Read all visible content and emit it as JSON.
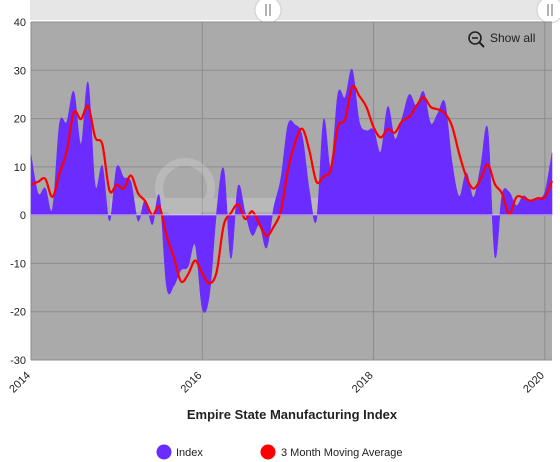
{
  "toolbar": {
    "show_all_label": "Show all"
  },
  "chart_data": {
    "type": "area",
    "title": "",
    "xlabel": "Empire State Manufacturing Index",
    "ylabel": "",
    "x_start": "2014-01",
    "x_end": "2020-02",
    "x_tick_labels": [
      "2014",
      "2016",
      "2018",
      "2020"
    ],
    "ylim": [
      -30,
      40
    ],
    "y_ticks": [
      -30,
      -20,
      -10,
      0,
      10,
      20,
      30,
      40
    ],
    "grid": true,
    "legend_position": "bottom",
    "colors": {
      "index": "#6a2cff",
      "moving_average": "#ff0000",
      "plot_background": "#aaaaaa",
      "grid": "#8c8c8c"
    },
    "x": [
      "2014-01",
      "2014-02",
      "2014-03",
      "2014-04",
      "2014-05",
      "2014-06",
      "2014-07",
      "2014-08",
      "2014-09",
      "2014-10",
      "2014-11",
      "2014-12",
      "2015-01",
      "2015-02",
      "2015-03",
      "2015-04",
      "2015-05",
      "2015-06",
      "2015-07",
      "2015-08",
      "2015-09",
      "2015-10",
      "2015-11",
      "2015-12",
      "2016-01",
      "2016-02",
      "2016-03",
      "2016-04",
      "2016-05",
      "2016-06",
      "2016-07",
      "2016-08",
      "2016-09",
      "2016-10",
      "2016-11",
      "2016-12",
      "2017-01",
      "2017-02",
      "2017-03",
      "2017-04",
      "2017-05",
      "2017-06",
      "2017-07",
      "2017-08",
      "2017-09",
      "2017-10",
      "2017-11",
      "2017-12",
      "2018-01",
      "2018-02",
      "2018-03",
      "2018-04",
      "2018-05",
      "2018-06",
      "2018-07",
      "2018-08",
      "2018-09",
      "2018-10",
      "2018-11",
      "2018-12",
      "2019-01",
      "2019-02",
      "2019-03",
      "2019-04",
      "2019-05",
      "2019-06",
      "2019-07",
      "2019-08",
      "2019-09",
      "2019-10",
      "2019-11",
      "2019-12",
      "2020-01",
      "2020-02"
    ],
    "series": [
      {
        "name": "Index",
        "values": [
          12.5,
          4.5,
          5.6,
          1.3,
          19.0,
          19.3,
          25.6,
          14.7,
          27.5,
          6.2,
          10.2,
          -1.2,
          9.9,
          7.8,
          6.9,
          -1.2,
          3.1,
          -2.0,
          3.9,
          -14.9,
          -14.7,
          -11.4,
          -10.7,
          -6.2,
          -19.4,
          -16.6,
          0.6,
          9.6,
          -9.0,
          6.0,
          0.6,
          -4.2,
          -2.0,
          -6.8,
          1.5,
          7.6,
          18.7,
          18.7,
          16.4,
          5.2,
          -1.0,
          19.8,
          9.8,
          25.2,
          24.4,
          30.2,
          19.4,
          17.5,
          17.7,
          13.1,
          22.5,
          15.8,
          20.1,
          25.0,
          22.6,
          25.6,
          19.0,
          21.1,
          23.3,
          10.9,
          3.9,
          8.8,
          3.7,
          10.1,
          17.8,
          -8.6,
          4.3,
          4.8,
          2.0,
          4.0,
          2.9,
          3.5,
          4.8,
          12.9
        ]
      },
      {
        "name": "3 Month Moving Average",
        "values": [
          6.3,
          6.9,
          7.5,
          3.8,
          8.6,
          13.2,
          21.3,
          19.9,
          22.6,
          16.1,
          14.6,
          5.1,
          6.3,
          5.5,
          8.2,
          4.5,
          2.9,
          0.0,
          1.7,
          -4.3,
          -8.6,
          -13.7,
          -12.3,
          -9.4,
          -12.1,
          -14.1,
          -11.8,
          -2.1,
          0.4,
          2.2,
          -0.8,
          0.8,
          -1.9,
          -4.3,
          -2.4,
          0.8,
          9.3,
          15.0,
          17.9,
          13.4,
          6.9,
          8.0,
          9.5,
          18.3,
          19.8,
          26.6,
          24.7,
          22.4,
          18.2,
          16.1,
          17.8,
          17.1,
          19.5,
          20.3,
          22.6,
          24.4,
          22.4,
          21.9,
          21.1,
          18.4,
          12.7,
          7.9,
          5.5,
          7.5,
          10.5,
          6.4,
          4.5,
          0.2,
          3.7,
          3.6,
          3.0,
          3.5,
          3.7,
          7.1
        ]
      }
    ]
  }
}
